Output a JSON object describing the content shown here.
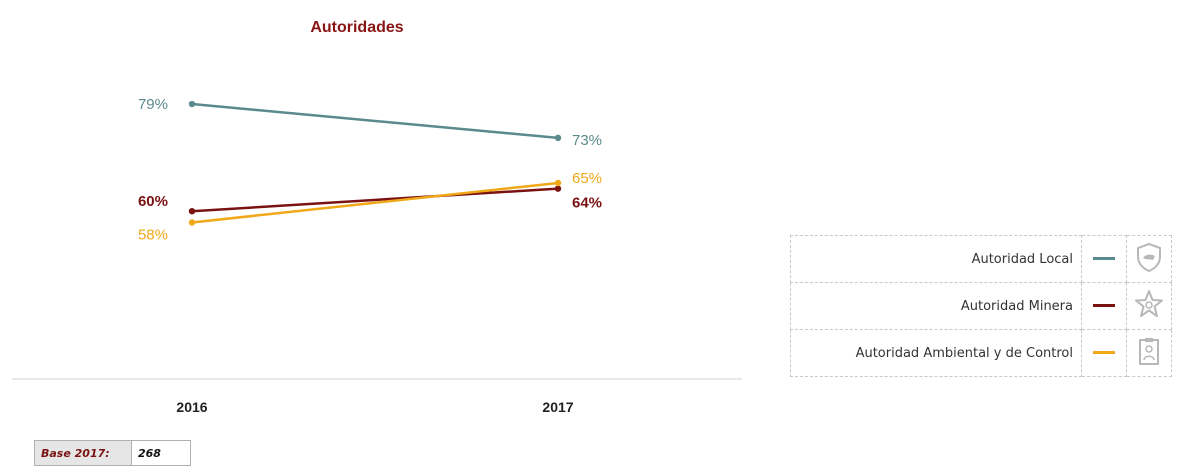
{
  "chart_data": {
    "type": "line",
    "title": "Autoridades",
    "categories": [
      "2016",
      "2017"
    ],
    "ylim": [
      40,
      90
    ],
    "grid": false,
    "legend_position": "right",
    "series": [
      {
        "name": "Autoridad Local",
        "values": [
          79,
          73
        ],
        "labels": [
          "79%",
          "73%"
        ],
        "color": "#5a8a8c",
        "icon": "shield-icon"
      },
      {
        "name": "Autoridad Minera",
        "values": [
          60,
          64
        ],
        "labels": [
          "60%",
          "64%"
        ],
        "color": "#7a1212",
        "icon": "star-icon"
      },
      {
        "name": "Autoridad Ambiental y de Control",
        "values": [
          58,
          65
        ],
        "labels": [
          "58%",
          "65%"
        ],
        "color": "#f0a818",
        "icon": "clipboard-icon"
      }
    ]
  },
  "colors": {
    "title": "#8a1515",
    "axis": "#d0d0d0",
    "icon": "#b8b8b8"
  },
  "base": {
    "label": "Base 2017:",
    "value": "268"
  }
}
